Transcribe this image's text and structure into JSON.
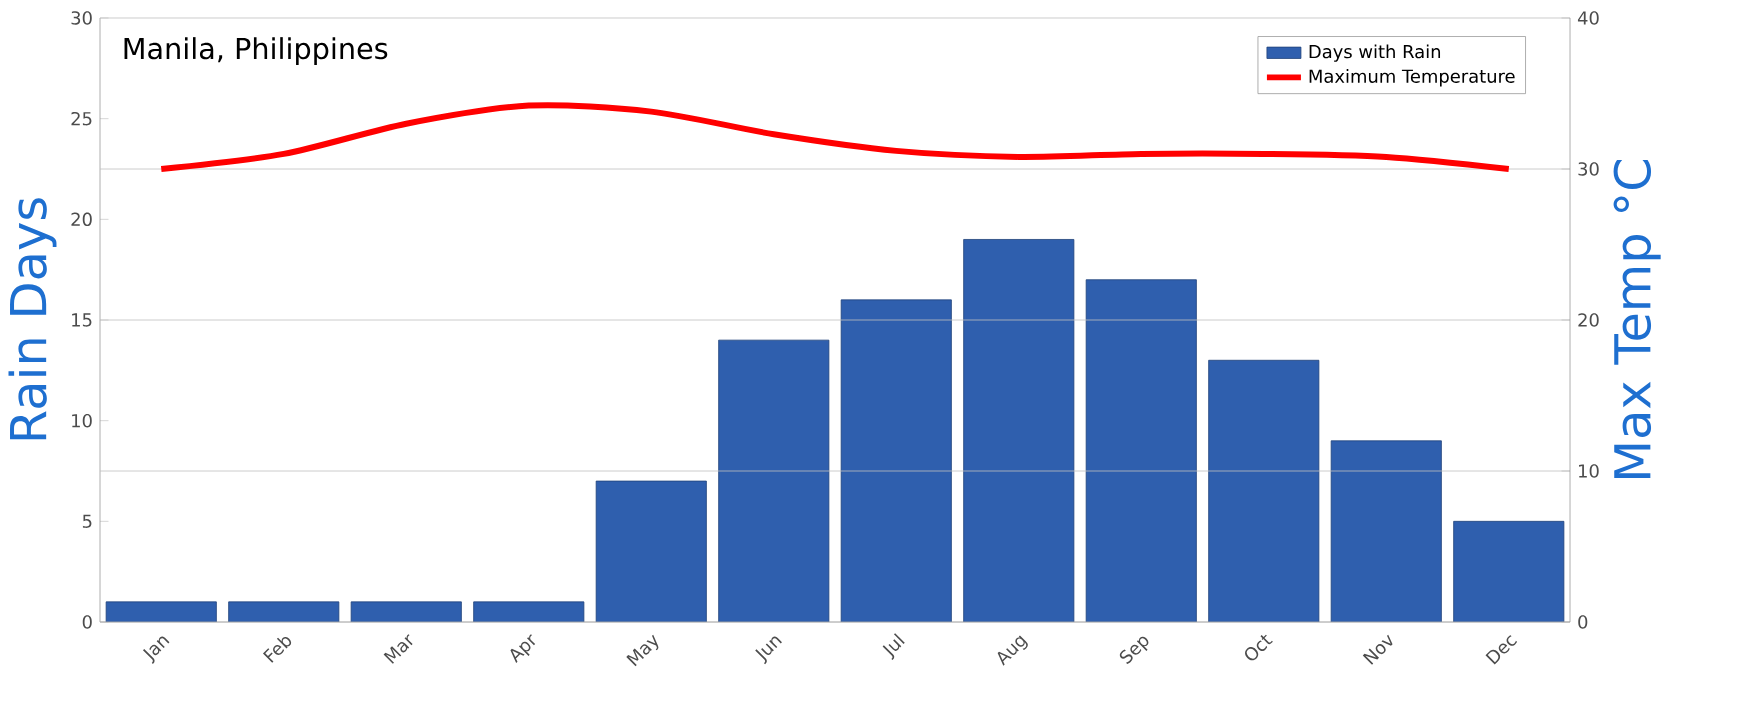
{
  "chart_data": {
    "type": "bar",
    "title": "Manila, Philippines",
    "ylabel": "Rain Days",
    "y2label": "Max Temp °C",
    "categories": [
      "Jan",
      "Feb",
      "Mar",
      "Apr",
      "May",
      "Jun",
      "Jul",
      "Aug",
      "Sep",
      "Oct",
      "Nov",
      "Dec"
    ],
    "series": [
      {
        "name": "Days with Rain",
        "color": "#2f5fae",
        "values": [
          1,
          1,
          1,
          1,
          7,
          14,
          16,
          19,
          17,
          13,
          9,
          5
        ]
      },
      {
        "name": "Maximum Temperature",
        "type": "line",
        "axis": "y2",
        "color": "#ff0000",
        "line_style": "solid",
        "marker": "none",
        "values": [
          30,
          31,
          33,
          34.2,
          33.8,
          32.3,
          31.2,
          30.8,
          31,
          31,
          30.8,
          30
        ]
      }
    ],
    "ylim": [
      0,
      30
    ],
    "yticks": [
      0,
      5,
      10,
      15,
      20,
      25,
      30
    ],
    "y2lim": [
      0,
      40
    ],
    "y2ticks": [
      0,
      10,
      20,
      30,
      40
    ],
    "grid": "y",
    "legend": "top right"
  }
}
